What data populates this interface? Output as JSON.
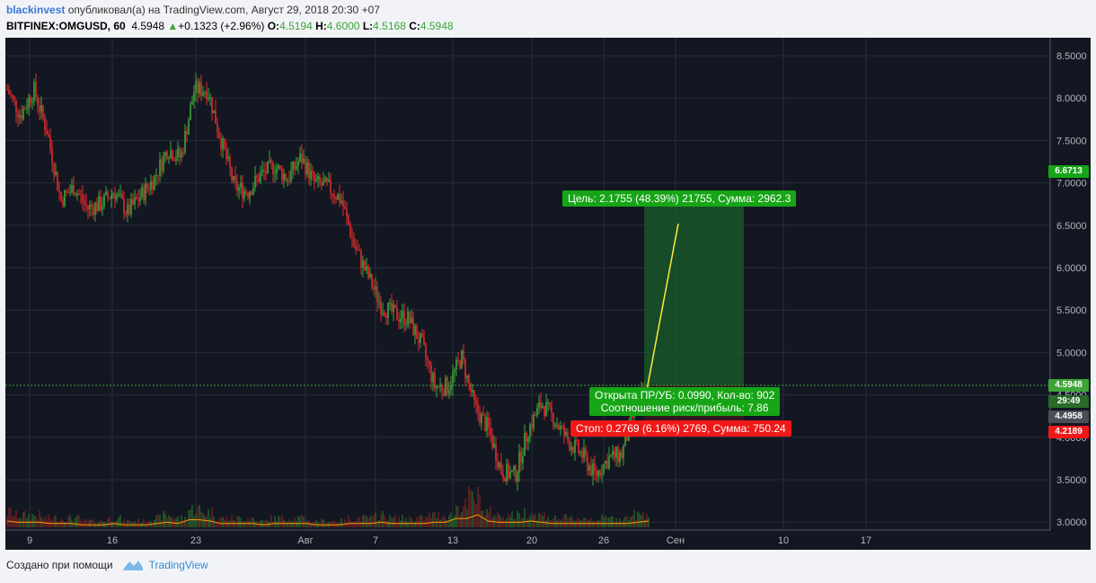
{
  "header": {
    "user": "blackinvest",
    "published": " опубликовал(а) на TradingView.com, Август 29, 2018 20:30 +07",
    "symbol": "BITFINEX:OMGUSD, 60",
    "last": "4.5948",
    "change": "+0.1323 (+2.96%)",
    "o_label": "O:",
    "o_val": "4.5194",
    "h_label": "H:",
    "h_val": "4.6000",
    "l_label": "L:",
    "l_val": "4.5168",
    "c_label": "C:",
    "c_val": "4.5948",
    "up_arrow_icon": "triangle-up-icon"
  },
  "price_axis": [
    "8.5000",
    "8.0000",
    "7.5000",
    "7.0000",
    "6.5000",
    "6.0000",
    "5.5000",
    "5.0000",
    "4.5000",
    "4.0000",
    "3.5000",
    "3.0000"
  ],
  "time_axis": [
    "9",
    "16",
    "23",
    "Авг",
    "7",
    "13",
    "20",
    "26",
    "Сен",
    "10",
    "17"
  ],
  "price_tags": {
    "target": "6.6713",
    "last": "4.5948",
    "countdown": "29:49",
    "crosshair": "4.4958",
    "stop": "4.2189"
  },
  "position": {
    "target_text": "Цель: 2.1755 (48.39%) 21755, Сумма: 2962.3",
    "open_text": "Открыта ПР/УБ: 0.0990, Кол-во: 902",
    "ratio_text": "Соотношение риск/прибыль: 7.86",
    "stop_text": "Стоп: 0.2769 (6.16%) 2769, Сумма: 750.24"
  },
  "chart_data": {
    "type": "candlestick",
    "symbol": "BITFINEX:OMGUSD",
    "interval": "60",
    "ylim": [
      2.9,
      8.65
    ],
    "x_ticks": [
      "9",
      "16",
      "23",
      "Авг",
      "7",
      "13",
      "20",
      "26",
      "Сен",
      "10",
      "17"
    ],
    "closes": [
      8.1,
      7.8,
      8.1,
      7.6,
      6.8,
      6.95,
      6.7,
      6.75,
      6.9,
      6.65,
      6.85,
      7.05,
      7.4,
      7.3,
      8.1,
      8.1,
      7.5,
      6.95,
      6.9,
      7.1,
      7.2,
      7.05,
      7.3,
      7.0,
      6.95,
      6.8,
      6.25,
      5.9,
      5.55,
      5.45,
      5.4,
      5.1,
      4.6,
      4.6,
      4.95,
      4.35,
      4.1,
      3.6,
      3.55,
      4.1,
      4.4,
      4.2,
      3.95,
      3.8,
      3.55,
      3.75,
      3.8,
      4.35,
      4.5948
    ],
    "volumes": [
      0.5,
      0.4,
      0.4,
      0.3,
      0.3,
      0.3,
      0.2,
      0.2,
      0.3,
      0.2,
      0.2,
      0.3,
      0.4,
      0.3,
      0.6,
      0.5,
      0.3,
      0.3,
      0.3,
      0.2,
      0.3,
      0.3,
      0.3,
      0.2,
      0.2,
      0.2,
      0.3,
      0.3,
      0.4,
      0.3,
      0.3,
      0.3,
      0.4,
      0.4,
      0.7,
      1.0,
      0.5,
      0.4,
      0.4,
      0.5,
      0.4,
      0.3,
      0.3,
      0.3,
      0.3,
      0.3,
      0.3,
      0.4,
      0.5
    ],
    "last_price": 4.5948,
    "target_price": 6.6713,
    "stop_price": 4.2189,
    "entry_price": 4.4958
  },
  "footer": {
    "created_with": "Создано при помощи",
    "brand": "TradingView"
  },
  "colors": {
    "bg": "#131722",
    "up": "#3da538",
    "down": "#e02b2b",
    "target_box": "#16a516",
    "stop_box": "#f01818"
  }
}
